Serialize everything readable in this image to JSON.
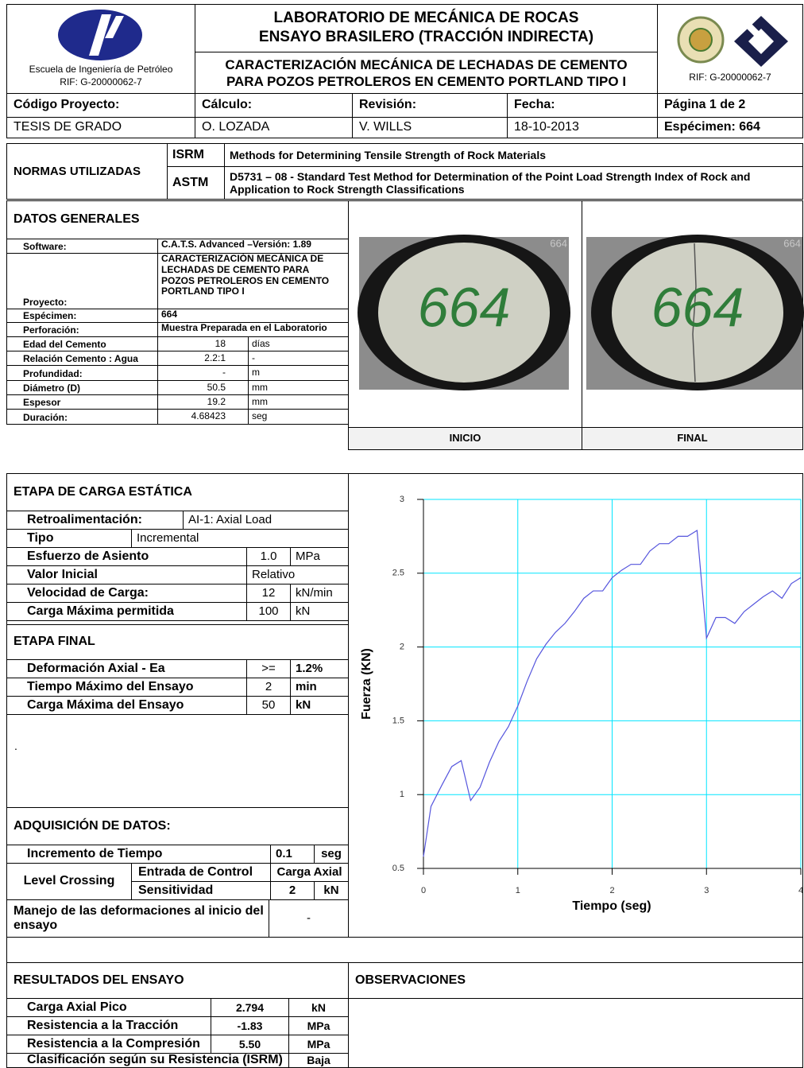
{
  "header": {
    "school": "Escuela de Ingeniería de Petróleo",
    "rif_left": "RIF: G-20000062-7",
    "title1": "LABORATORIO DE MECÁNICA DE ROCAS",
    "title2": "ENSAYO BRASILERO (TRACCIÓN INDIRECTA)",
    "subtitle1": "CARACTERIZACIÓN MECÁNICA DE LECHADAS DE CEMENTO",
    "subtitle2": "PARA POZOS PETROLEROS EN CEMENTO PORTLAND TIPO I",
    "rif_right": "RIF: G-20000062-7"
  },
  "info": {
    "labels": [
      "Código Proyecto:",
      "Cálculo:",
      "Revisión:",
      "Fecha:",
      "Página 1 de 2"
    ],
    "values": [
      "TESIS DE GRADO",
      "O. LOZADA",
      "V. WILLS",
      "18-10-2013",
      "Espécimen: 664"
    ]
  },
  "normas": {
    "title": "NORMAS UTILIZADAS",
    "rows": [
      [
        "ISRM",
        "Methods for Determining Tensile Strength of Rock Materials"
      ],
      [
        "ASTM",
        "D5731 – 08 -  Standard Test Method for Determination of the Point Load Strength Index of Rock and Application to Rock Strength Classifications"
      ]
    ]
  },
  "datos_generales": {
    "title": "DATOS GENERALES",
    "rows": [
      [
        "Software:",
        "C.A.T.S. Advanced –Versión: 1.89"
      ],
      [
        "Proyecto:",
        "CARACTERIZACIÓN MECÁNICA DE LECHADAS DE CEMENTO PARA POZOS PETROLEROS EN CEMENTO PORTLAND TIPO I"
      ],
      [
        "Espécimen:",
        "664"
      ],
      [
        "Perforación:",
        "Muestra Preparada en el Laboratorio"
      ],
      [
        "Edad del Cemento",
        "18",
        "días"
      ],
      [
        "Relación Cemento : Agua",
        "2.2:1",
        "-"
      ],
      [
        "Profundidad:",
        "-",
        "m"
      ],
      [
        "Diámetro (D)",
        "50.5",
        "mm"
      ],
      [
        "Espesor",
        "19.2",
        "mm"
      ],
      [
        "Duración:",
        "4.68423",
        "seg"
      ]
    ]
  },
  "photos": [
    {
      "label": "INICIO",
      "writing": "664",
      "tag": "664"
    },
    {
      "label": "FINAL",
      "writing": "664",
      "tag": "664"
    }
  ],
  "carga_estatica": {
    "title": "ETAPA DE CARGA ESTÁTICA",
    "rows": [
      [
        "Retroalimentación:",
        "AI-1: Axial Load"
      ],
      [
        "Tipo",
        "Incremental"
      ],
      [
        "Esfuerzo de Asiento",
        "1.0",
        "MPa"
      ],
      [
        "Valor Inicial",
        "Relativo"
      ],
      [
        "Velocidad de Carga:",
        "12",
        "kN/min"
      ],
      [
        "Carga Máxima permitida",
        "100",
        "kN"
      ]
    ]
  },
  "etapa_final": {
    "title": "ETAPA FINAL",
    "rows": [
      [
        "Deformación Axial - Ea",
        ">=",
        "1.2%"
      ],
      [
        "Tiempo Máximo del Ensayo",
        "2",
        "min"
      ],
      [
        "Carga  Máxima del Ensayo",
        "50",
        "kN"
      ]
    ],
    "note": "."
  },
  "adquisicion": {
    "title": "ADQUISICIÓN DE DATOS:",
    "incremento": [
      "Incremento de Tiempo",
      "0.1",
      "seg"
    ],
    "level": "Level Crossing",
    "level_rows": [
      [
        "Entrada de Control",
        "Carga Axial"
      ],
      [
        "Sensitividad",
        "2",
        "kN"
      ]
    ],
    "manejo": [
      "Manejo de las deformaciones al inicio del ensayo",
      "-"
    ]
  },
  "resultados": {
    "title": "RESULTADOS DEL ENSAYO",
    "rows": [
      [
        "Carga Axial Pico",
        "2.794",
        "kN"
      ],
      [
        "Resistencia a la Tracción",
        "-1.83",
        "MPa"
      ],
      [
        "Resistencia a la Compresión",
        "5.50",
        "MPa"
      ],
      [
        "Clasificación según su Resistencia (ISRM)",
        "Baja"
      ]
    ]
  },
  "observaciones": {
    "title": "OBSERVACIONES"
  },
  "chart_data": {
    "type": "line",
    "xlabel": "Tiempo (seg)",
    "ylabel": "Fuerza (KN)",
    "x": [
      0,
      0.08,
      0.2,
      0.3,
      0.4,
      0.5,
      0.6,
      0.7,
      0.8,
      0.9,
      1.0,
      1.1,
      1.2,
      1.3,
      1.4,
      1.5,
      1.6,
      1.7,
      1.8,
      1.9,
      2.0,
      2.1,
      2.2,
      2.3,
      2.4,
      2.5,
      2.6,
      2.7,
      2.8,
      2.9,
      3.0,
      3.1,
      3.2,
      3.3,
      3.4,
      3.5,
      3.6,
      3.7,
      3.8,
      3.9,
      4.0
    ],
    "values": [
      0.58,
      0.92,
      1.07,
      1.19,
      1.23,
      0.96,
      1.05,
      1.22,
      1.36,
      1.46,
      1.6,
      1.77,
      1.92,
      2.02,
      2.1,
      2.16,
      2.24,
      2.33,
      2.38,
      2.38,
      2.47,
      2.52,
      2.56,
      2.56,
      2.65,
      2.7,
      2.7,
      2.75,
      2.75,
      2.79,
      2.06,
      2.2,
      2.2,
      2.16,
      2.24,
      2.29,
      2.34,
      2.38,
      2.33,
      2.43,
      2.47
    ],
    "color": "#5555dd",
    "grid": true,
    "grid_color": "#00e5ff",
    "xlim": [
      0,
      4
    ],
    "xticks": [
      0,
      1,
      2,
      3,
      4
    ],
    "ylim": [
      0.5,
      3
    ],
    "yticks": [
      0.5,
      1,
      1.5,
      2,
      2.5,
      3
    ]
  }
}
